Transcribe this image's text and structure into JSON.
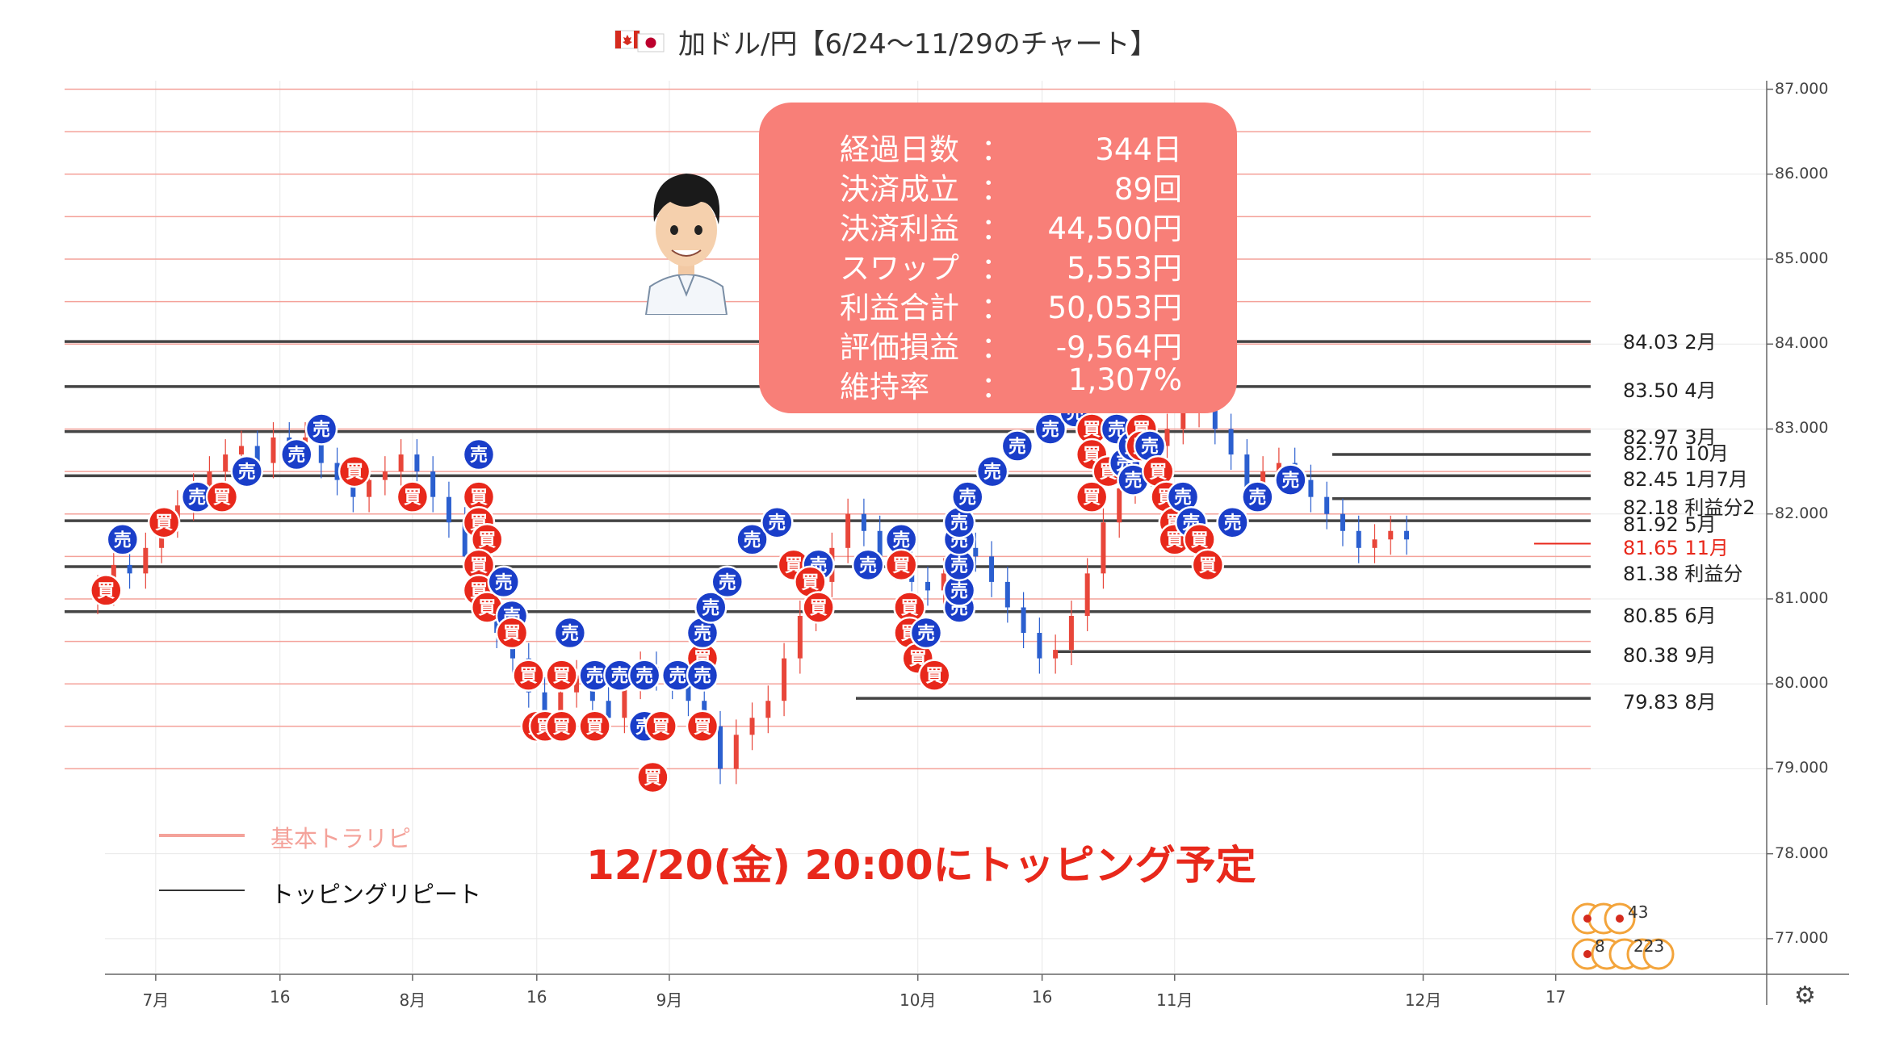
{
  "title": {
    "text": "加ドル/円【6/24〜11/29のチャート】",
    "flag_icon": "canada-japan-flag-icon"
  },
  "stats": [
    {
      "label": "経過日数",
      "value": "344日"
    },
    {
      "label": "決済成立",
      "value": "89回"
    },
    {
      "label": "決済利益",
      "value": "44,500円"
    },
    {
      "label": "スワップ",
      "value": "5,553円"
    },
    {
      "label": "利益合計",
      "value": "50,053円"
    },
    {
      "label": "評価損益",
      "value": "-9,564円"
    },
    {
      "label": "維持率",
      "value": "1,307%"
    }
  ],
  "stats_colon": "：",
  "notice": "12/20(金) 20:00にトッピング予定",
  "legend": {
    "basic": "基本トラリピ",
    "topping": "トッピングリピート"
  },
  "colors": {
    "basic_line": "#f4a29a",
    "topping_line": "#555555",
    "buy": "#e8281b",
    "sell": "#1a3ec9",
    "notice": "#e8281b",
    "stats_box": "#f87f78"
  },
  "marker_labels": {
    "buy": "買",
    "sell": "売"
  },
  "bottom_badges": {
    "top": "43",
    "bottom_left": "8",
    "bottom_right": "223"
  },
  "chart_data": {
    "type": "candlestick",
    "pair": "CAD/JPY",
    "ylim": [
      76.6,
      87.1
    ],
    "y_ticks": [
      "87.000",
      "86.000",
      "85.000",
      "84.000",
      "83.000",
      "82.000",
      "81.000",
      "80.000",
      "79.000",
      "78.000",
      "77.000"
    ],
    "y_tick_values": [
      87,
      86,
      85,
      84,
      83,
      82,
      81,
      80,
      79,
      78,
      77
    ],
    "x_ticks": [
      {
        "label": "7月",
        "date": "2019-07-01"
      },
      {
        "label": "16",
        "date": "2019-07-16"
      },
      {
        "label": "8月",
        "date": "2019-08-01"
      },
      {
        "label": "16",
        "date": "2019-08-16"
      },
      {
        "label": "9月",
        "date": "2019-09-01"
      },
      {
        "label": "10月",
        "date": "2019-10-01"
      },
      {
        "label": "16",
        "date": "2019-10-16"
      },
      {
        "label": "11月",
        "date": "2019-11-01"
      },
      {
        "label": "12月",
        "date": "2019-12-01"
      },
      {
        "label": "17",
        "date": "2019-12-17"
      }
    ],
    "xlim": [
      "2019-06-20",
      "2019-12-22"
    ],
    "close": [
      81.1,
      81.4,
      81.3,
      81.6,
      81.9,
      82.1,
      82.3,
      82.5,
      82.7,
      82.8,
      82.6,
      82.9,
      82.8,
      82.9,
      82.6,
      82.4,
      82.2,
      82.4,
      82.5,
      82.7,
      82.5,
      82.2,
      81.9,
      81.5,
      81.0,
      80.6,
      80.3,
      79.9,
      79.6,
      79.9,
      80.1,
      79.8,
      79.6,
      80.0,
      80.2,
      80.1,
      80.0,
      79.8,
      79.5,
      79.0,
      79.4,
      79.6,
      79.8,
      80.3,
      80.8,
      81.2,
      81.6,
      82.0,
      81.8,
      81.5,
      81.4,
      81.2,
      81.1,
      81.3,
      81.6,
      81.5,
      81.2,
      80.9,
      80.6,
      80.3,
      80.4,
      80.8,
      81.3,
      81.9,
      82.3,
      82.5,
      82.8,
      83.0,
      83.2,
      83.5,
      83.0,
      82.7,
      82.3,
      82.5,
      82.6,
      82.4,
      82.2,
      82.0,
      81.8,
      81.6,
      81.7,
      81.8,
      81.7
    ],
    "lines": [
      {
        "kind": "topping",
        "price": 84.03,
        "label": "84.03 2月"
      },
      {
        "kind": "topping",
        "price": 83.5,
        "label": "83.50 4月"
      },
      {
        "kind": "topping",
        "price": 82.97,
        "label": "82.97 3月"
      },
      {
        "kind": "topping",
        "price": 82.7,
        "label": "82.70 10月"
      },
      {
        "kind": "topping",
        "price": 82.45,
        "label": "82.45 1月7月"
      },
      {
        "kind": "topping",
        "price": 82.18,
        "label": "82.18 利益分2"
      },
      {
        "kind": "topping",
        "price": 81.92,
        "label": "81.92 5月"
      },
      {
        "kind": "current",
        "price": 81.65,
        "label": "81.65 11月"
      },
      {
        "kind": "topping",
        "price": 81.38,
        "label": "81.38 利益分"
      },
      {
        "kind": "topping",
        "price": 80.85,
        "label": "80.85 6月"
      },
      {
        "kind": "topping",
        "price": 80.38,
        "label": "80.38 9月"
      },
      {
        "kind": "topping",
        "price": 79.83,
        "label": "79.83 8月"
      }
    ],
    "basic_levels": [
      87.0,
      86.5,
      86.0,
      85.5,
      85.0,
      84.5,
      84.0,
      83.5,
      83.0,
      82.5,
      82.0,
      81.5,
      81.0,
      80.5,
      80.0,
      79.5,
      79.0
    ],
    "markers": [
      {
        "type": "buy",
        "date": "2019-06-25",
        "price": 81.1
      },
      {
        "type": "sell",
        "date": "2019-06-27",
        "price": 81.7
      },
      {
        "type": "buy",
        "date": "2019-07-02",
        "price": 81.9
      },
      {
        "type": "sell",
        "date": "2019-07-06",
        "price": 82.2
      },
      {
        "type": "buy",
        "date": "2019-07-09",
        "price": 82.2
      },
      {
        "type": "sell",
        "date": "2019-07-12",
        "price": 82.5
      },
      {
        "type": "sell",
        "date": "2019-07-18",
        "price": 82.7
      },
      {
        "type": "sell",
        "date": "2019-07-21",
        "price": 83.0
      },
      {
        "type": "buy",
        "date": "2019-07-25",
        "price": 82.5
      },
      {
        "type": "buy",
        "date": "2019-08-01",
        "price": 82.2
      },
      {
        "type": "sell",
        "date": "2019-08-09",
        "price": 82.7
      },
      {
        "type": "buy",
        "date": "2019-08-09",
        "price": 82.2
      },
      {
        "type": "buy",
        "date": "2019-08-09",
        "price": 81.9
      },
      {
        "type": "buy",
        "date": "2019-08-10",
        "price": 81.7
      },
      {
        "type": "buy",
        "date": "2019-08-09",
        "price": 81.4
      },
      {
        "type": "buy",
        "date": "2019-08-09",
        "price": 81.1
      },
      {
        "type": "buy",
        "date": "2019-08-10",
        "price": 80.9
      },
      {
        "type": "sell",
        "date": "2019-08-12",
        "price": 81.2
      },
      {
        "type": "sell",
        "date": "2019-08-13",
        "price": 80.8
      },
      {
        "type": "buy",
        "date": "2019-08-13",
        "price": 80.6
      },
      {
        "type": "buy",
        "date": "2019-08-15",
        "price": 80.1
      },
      {
        "type": "buy",
        "date": "2019-08-16",
        "price": 79.5
      },
      {
        "type": "buy",
        "date": "2019-08-17",
        "price": 79.5
      },
      {
        "type": "buy",
        "date": "2019-08-19",
        "price": 79.5
      },
      {
        "type": "buy",
        "date": "2019-08-19",
        "price": 80.1
      },
      {
        "type": "sell",
        "date": "2019-08-20",
        "price": 80.6
      },
      {
        "type": "buy",
        "date": "2019-08-23",
        "price": 79.5
      },
      {
        "type": "sell",
        "date": "2019-08-23",
        "price": 80.1
      },
      {
        "type": "sell",
        "date": "2019-08-26",
        "price": 80.1
      },
      {
        "type": "sell",
        "date": "2019-08-29",
        "price": 80.1
      },
      {
        "type": "sell",
        "date": "2019-08-29",
        "price": 79.5
      },
      {
        "type": "buy",
        "date": "2019-08-30",
        "price": 78.9
      },
      {
        "type": "buy",
        "date": "2019-08-31",
        "price": 79.5
      },
      {
        "type": "sell",
        "date": "2019-09-02",
        "price": 80.1
      },
      {
        "type": "buy",
        "date": "2019-09-05",
        "price": 80.3
      },
      {
        "type": "buy",
        "date": "2019-09-05",
        "price": 79.5
      },
      {
        "type": "sell",
        "date": "2019-09-05",
        "price": 80.1
      },
      {
        "type": "sell",
        "date": "2019-09-05",
        "price": 80.6
      },
      {
        "type": "sell",
        "date": "2019-09-06",
        "price": 80.9
      },
      {
        "type": "sell",
        "date": "2019-09-08",
        "price": 81.2
      },
      {
        "type": "sell",
        "date": "2019-09-11",
        "price": 81.7
      },
      {
        "type": "sell",
        "date": "2019-09-14",
        "price": 81.9
      },
      {
        "type": "buy",
        "date": "2019-09-16",
        "price": 81.4
      },
      {
        "type": "sell",
        "date": "2019-09-19",
        "price": 81.4
      },
      {
        "type": "buy",
        "date": "2019-09-18",
        "price": 81.2
      },
      {
        "type": "buy",
        "date": "2019-09-19",
        "price": 80.9
      },
      {
        "type": "sell",
        "date": "2019-09-25",
        "price": 81.4
      },
      {
        "type": "sell",
        "date": "2019-09-29",
        "price": 81.7
      },
      {
        "type": "buy",
        "date": "2019-09-29",
        "price": 81.4
      },
      {
        "type": "buy",
        "date": "2019-09-30",
        "price": 80.9
      },
      {
        "type": "buy",
        "date": "2019-09-30",
        "price": 80.6
      },
      {
        "type": "buy",
        "date": "2019-10-01",
        "price": 80.3
      },
      {
        "type": "sell",
        "date": "2019-10-02",
        "price": 80.6
      },
      {
        "type": "buy",
        "date": "2019-10-03",
        "price": 80.1
      },
      {
        "type": "sell",
        "date": "2019-10-06",
        "price": 80.9
      },
      {
        "type": "sell",
        "date": "2019-10-06",
        "price": 81.1
      },
      {
        "type": "sell",
        "date": "2019-10-06",
        "price": 81.4
      },
      {
        "type": "sell",
        "date": "2019-10-06",
        "price": 81.7
      },
      {
        "type": "sell",
        "date": "2019-10-06",
        "price": 81.9
      },
      {
        "type": "sell",
        "date": "2019-10-07",
        "price": 82.2
      },
      {
        "type": "sell",
        "date": "2019-10-10",
        "price": 82.5
      },
      {
        "type": "sell",
        "date": "2019-10-13",
        "price": 82.8
      },
      {
        "type": "sell",
        "date": "2019-10-17",
        "price": 83.0
      },
      {
        "type": "sell",
        "date": "2019-10-20",
        "price": 83.2
      },
      {
        "type": "sell",
        "date": "2019-10-21",
        "price": 83.5
      },
      {
        "type": "buy",
        "date": "2019-10-22",
        "price": 83.0
      },
      {
        "type": "buy",
        "date": "2019-10-22",
        "price": 82.7
      },
      {
        "type": "buy",
        "date": "2019-10-22",
        "price": 82.2
      },
      {
        "type": "buy",
        "date": "2019-10-24",
        "price": 82.5
      },
      {
        "type": "sell",
        "date": "2019-10-25",
        "price": 83.0
      },
      {
        "type": "sell",
        "date": "2019-10-26",
        "price": 82.6
      },
      {
        "type": "sell",
        "date": "2019-10-27",
        "price": 82.8
      },
      {
        "type": "sell",
        "date": "2019-10-27",
        "price": 82.4
      },
      {
        "type": "buy",
        "date": "2019-10-28",
        "price": 83.0
      },
      {
        "type": "buy",
        "date": "2019-10-28",
        "price": 82.8
      },
      {
        "type": "sell",
        "date": "2019-10-29",
        "price": 82.8
      },
      {
        "type": "buy",
        "date": "2019-10-30",
        "price": 82.5
      },
      {
        "type": "buy",
        "date": "2019-10-31",
        "price": 82.2
      },
      {
        "type": "buy",
        "date": "2019-11-01",
        "price": 81.9
      },
      {
        "type": "buy",
        "date": "2019-11-01",
        "price": 81.7
      },
      {
        "type": "sell",
        "date": "2019-11-02",
        "price": 82.2
      },
      {
        "type": "sell",
        "date": "2019-11-03",
        "price": 81.9
      },
      {
        "type": "buy",
        "date": "2019-11-04",
        "price": 81.7
      },
      {
        "type": "buy",
        "date": "2019-11-05",
        "price": 81.4
      },
      {
        "type": "sell",
        "date": "2019-11-08",
        "price": 81.9
      },
      {
        "type": "sell",
        "date": "2019-11-11",
        "price": 82.2
      },
      {
        "type": "sell",
        "date": "2019-11-15",
        "price": 82.4
      }
    ]
  }
}
